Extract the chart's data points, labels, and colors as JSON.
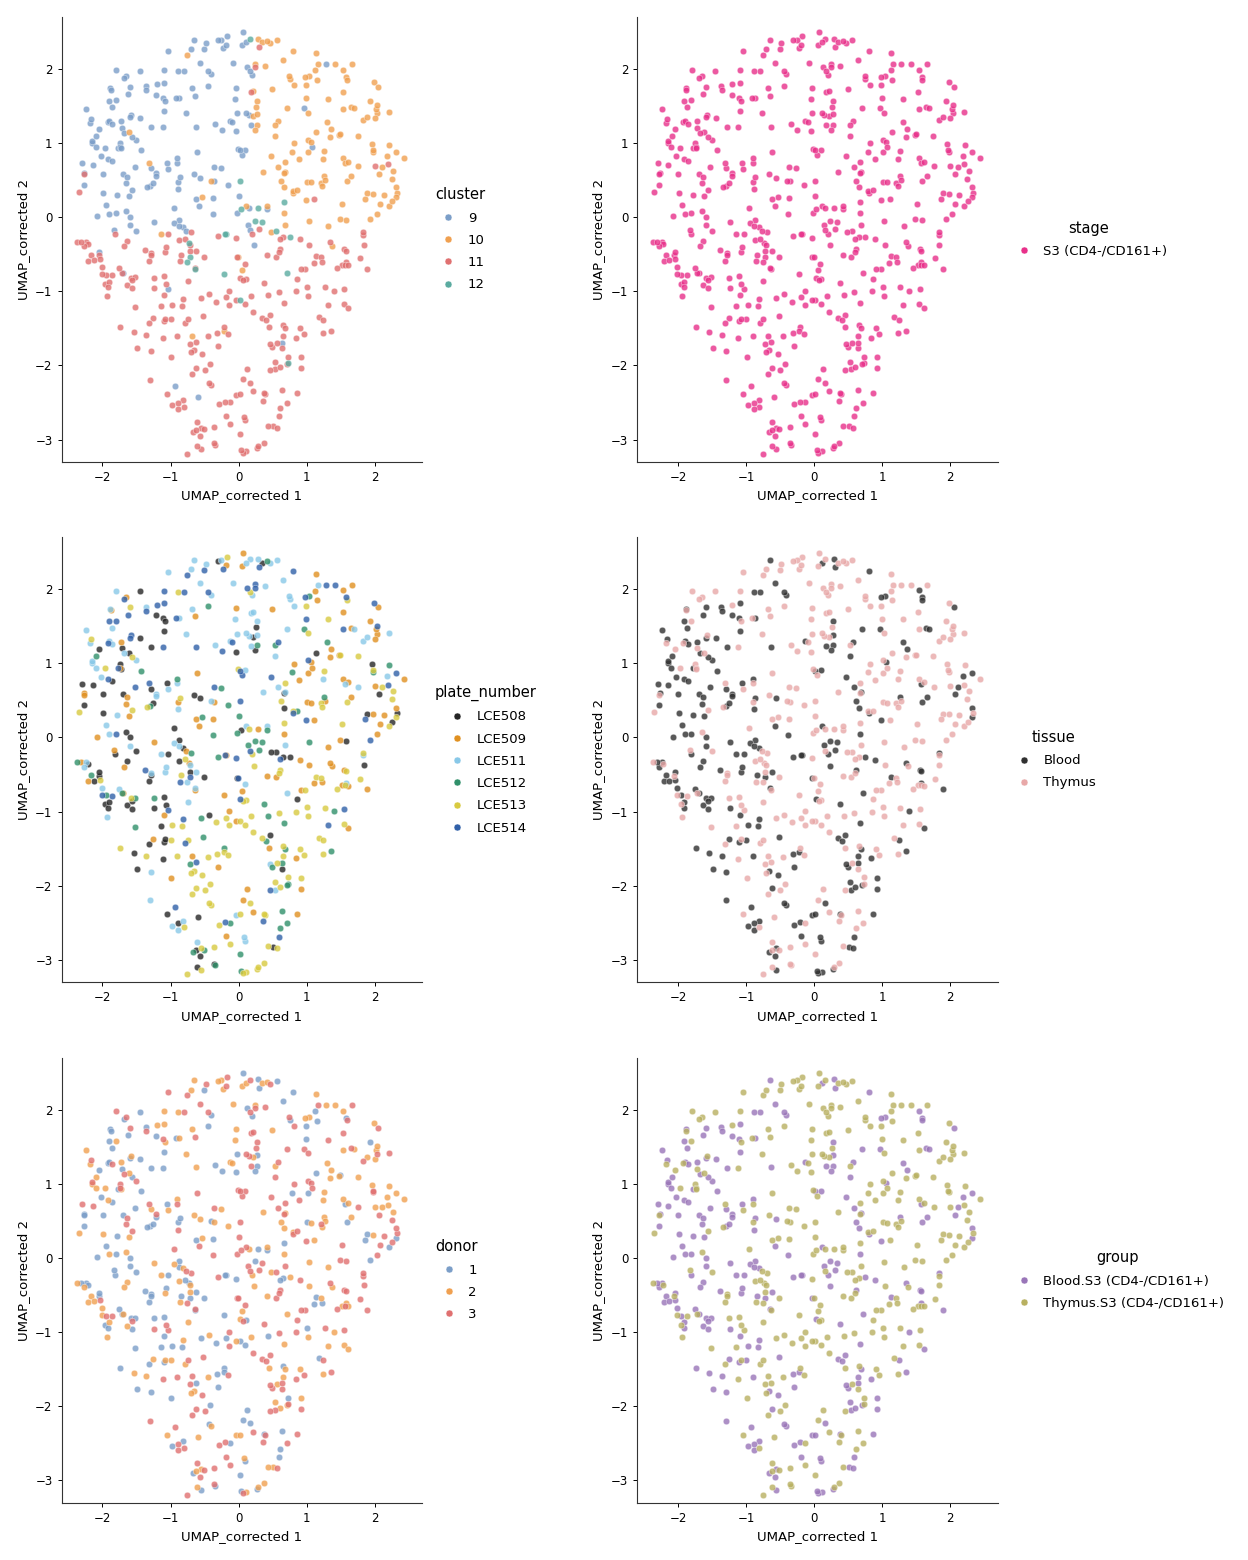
{
  "seed": 42,
  "n_cells": 550,
  "xlim": [
    -2.6,
    2.7
  ],
  "ylim": [
    -3.3,
    2.7
  ],
  "xticks": [
    -2,
    -1,
    0,
    1,
    2
  ],
  "yticks": [
    -3,
    -2,
    -1,
    0,
    1,
    2
  ],
  "xlabel": "UMAP_corrected 1",
  "ylabel": "UMAP_corrected 2",
  "cluster_colors": {
    "9": "#7B9EC8",
    "10": "#F0A050",
    "11": "#E07070",
    "12": "#5AABA0"
  },
  "stage_colors": {
    "S3 (CD4-/CD161+)": "#E8308A"
  },
  "plate_colors": {
    "LCE508": "#252525",
    "LCE509": "#E09020",
    "LCE511": "#88C8E8",
    "LCE512": "#30906A",
    "LCE513": "#D8CA40",
    "LCE514": "#3060A8"
  },
  "tissue_colors": {
    "Blood": "#303030",
    "Thymus": "#E8A8A8"
  },
  "donor_colors": {
    "1": "#7B9EC8",
    "2": "#F0A050",
    "3": "#E07070"
  },
  "group_colors": {
    "Blood.S3 (CD4-/CD161+)": "#9975B8",
    "Thymus.S3 (CD4-/CD161+)": "#B8B060"
  },
  "point_size": 22,
  "alpha": 0.8,
  "edgecolor": "white",
  "edgewidth": 0.3,
  "legend_fontsize": 9.5,
  "legend_title_fontsize": 10.5,
  "axis_fontsize": 9.5,
  "tick_fontsize": 8.5,
  "background_color": "#FFFFFF",
  "spine_color": "#333333"
}
